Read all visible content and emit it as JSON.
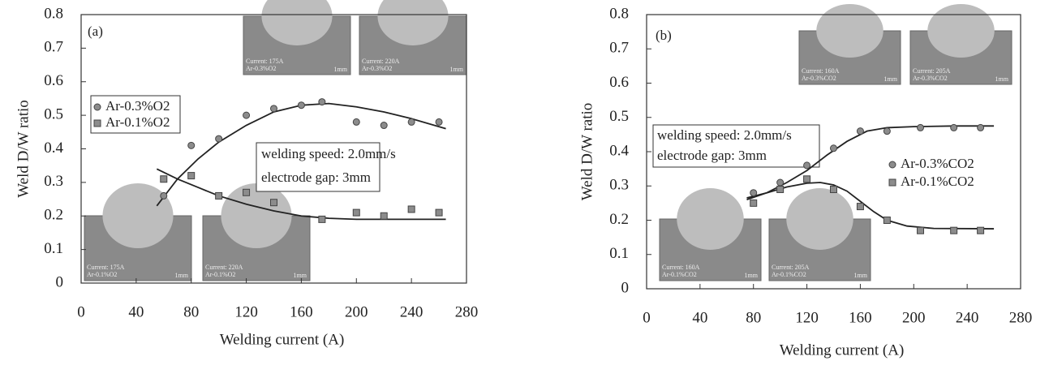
{
  "chart_data": [
    {
      "type": "scatter",
      "panel_label": "(a)",
      "x_label": "Welding current (A)",
      "y_label": "Weld D/W ratio",
      "xlim": [
        0,
        280
      ],
      "xticks": [
        0,
        40,
        80,
        120,
        160,
        200,
        240,
        280
      ],
      "ylim": [
        0,
        0.8
      ],
      "yticks": [
        0,
        0.1,
        0.2,
        0.3,
        0.4,
        0.5,
        0.6,
        0.7,
        0.8
      ],
      "series": [
        {
          "name": "Ar-0.3%O2",
          "color": "#8c8c8c",
          "marker": "circle",
          "x": [
            60,
            80,
            100,
            120,
            140,
            160,
            175,
            200,
            220,
            240,
            260
          ],
          "values": [
            0.26,
            0.41,
            0.43,
            0.5,
            0.52,
            0.53,
            0.54,
            0.48,
            0.47,
            0.48,
            0.48
          ]
        },
        {
          "name": "Ar-0.1%O2",
          "color": "#8c8c8c",
          "marker": "square",
          "x": [
            60,
            80,
            100,
            120,
            140,
            175,
            200,
            220,
            240,
            260
          ],
          "values": [
            0.31,
            0.32,
            0.26,
            0.27,
            0.24,
            0.19,
            0.21,
            0.2,
            0.22,
            0.21
          ]
        }
      ],
      "fits": [
        {
          "x": [
            55,
            70,
            85,
            100,
            120,
            140,
            160,
            180,
            200,
            220,
            240,
            265
          ],
          "values": [
            0.23,
            0.31,
            0.37,
            0.42,
            0.47,
            0.51,
            0.53,
            0.535,
            0.525,
            0.51,
            0.49,
            0.46
          ]
        },
        {
          "x": [
            55,
            70,
            85,
            100,
            120,
            140,
            160,
            180,
            200,
            230,
            265
          ],
          "values": [
            0.34,
            0.31,
            0.285,
            0.26,
            0.235,
            0.215,
            0.2,
            0.193,
            0.19,
            0.19,
            0.19
          ]
        }
      ],
      "annotations": [
        "welding speed: 2.0mm/s",
        "electrode gap: 3mm"
      ],
      "insets": [
        {
          "lines": [
            "Current: 175A",
            "Ar-0.3%O2",
            "1mm"
          ]
        },
        {
          "lines": [
            "Current: 220A",
            "Ar-0.3%O2",
            "1mm"
          ]
        },
        {
          "lines": [
            "Current: 175A",
            "Ar-0.1%O2",
            "1mm"
          ]
        },
        {
          "lines": [
            "Current: 220A",
            "Ar-0.1%O2",
            "1mm"
          ]
        }
      ]
    },
    {
      "type": "scatter",
      "panel_label": "(b)",
      "x_label": "Welding current (A)",
      "y_label": "Weld D/W ratio",
      "xlim": [
        0,
        280
      ],
      "xticks": [
        0,
        40,
        80,
        120,
        160,
        200,
        240,
        280
      ],
      "ylim": [
        0,
        0.8
      ],
      "yticks": [
        0,
        0.1,
        0.2,
        0.3,
        0.4,
        0.5,
        0.6,
        0.7,
        0.8
      ],
      "series": [
        {
          "name": "Ar-0.3%CO2",
          "color": "#8c8c8c",
          "marker": "circle",
          "x": [
            80,
            100,
            120,
            140,
            160,
            180,
            205,
            230,
            250
          ],
          "values": [
            0.28,
            0.31,
            0.36,
            0.41,
            0.46,
            0.46,
            0.47,
            0.47,
            0.47
          ]
        },
        {
          "name": "Ar-0.1%CO2",
          "color": "#8c8c8c",
          "marker": "square",
          "x": [
            80,
            100,
            120,
            140,
            160,
            180,
            205,
            230,
            250
          ],
          "values": [
            0.25,
            0.29,
            0.32,
            0.29,
            0.24,
            0.2,
            0.17,
            0.17,
            0.17
          ]
        }
      ],
      "fits": [
        {
          "x": [
            75,
            90,
            105,
            120,
            135,
            150,
            165,
            180,
            200,
            230,
            260
          ],
          "values": [
            0.265,
            0.28,
            0.31,
            0.345,
            0.39,
            0.43,
            0.46,
            0.47,
            0.473,
            0.475,
            0.475
          ]
        },
        {
          "x": [
            75,
            90,
            105,
            120,
            130,
            140,
            150,
            160,
            170,
            180,
            195,
            215,
            260
          ],
          "values": [
            0.26,
            0.28,
            0.297,
            0.308,
            0.31,
            0.303,
            0.285,
            0.255,
            0.225,
            0.2,
            0.183,
            0.176,
            0.175
          ]
        }
      ],
      "annotations": [
        "welding speed: 2.0mm/s",
        "electrode gap: 3mm"
      ],
      "insets": [
        {
          "lines": [
            "Current: 160A",
            "Ar-0.3%CO2",
            "1mm"
          ]
        },
        {
          "lines": [
            "Current: 205A",
            "Ar-0.3%CO2",
            "1mm"
          ]
        },
        {
          "lines": [
            "Current: 160A",
            "Ar-0.1%CO2",
            "1mm"
          ]
        },
        {
          "lines": [
            "Current: 205A",
            "Ar-0.1%CO2",
            "1mm"
          ]
        }
      ]
    }
  ]
}
